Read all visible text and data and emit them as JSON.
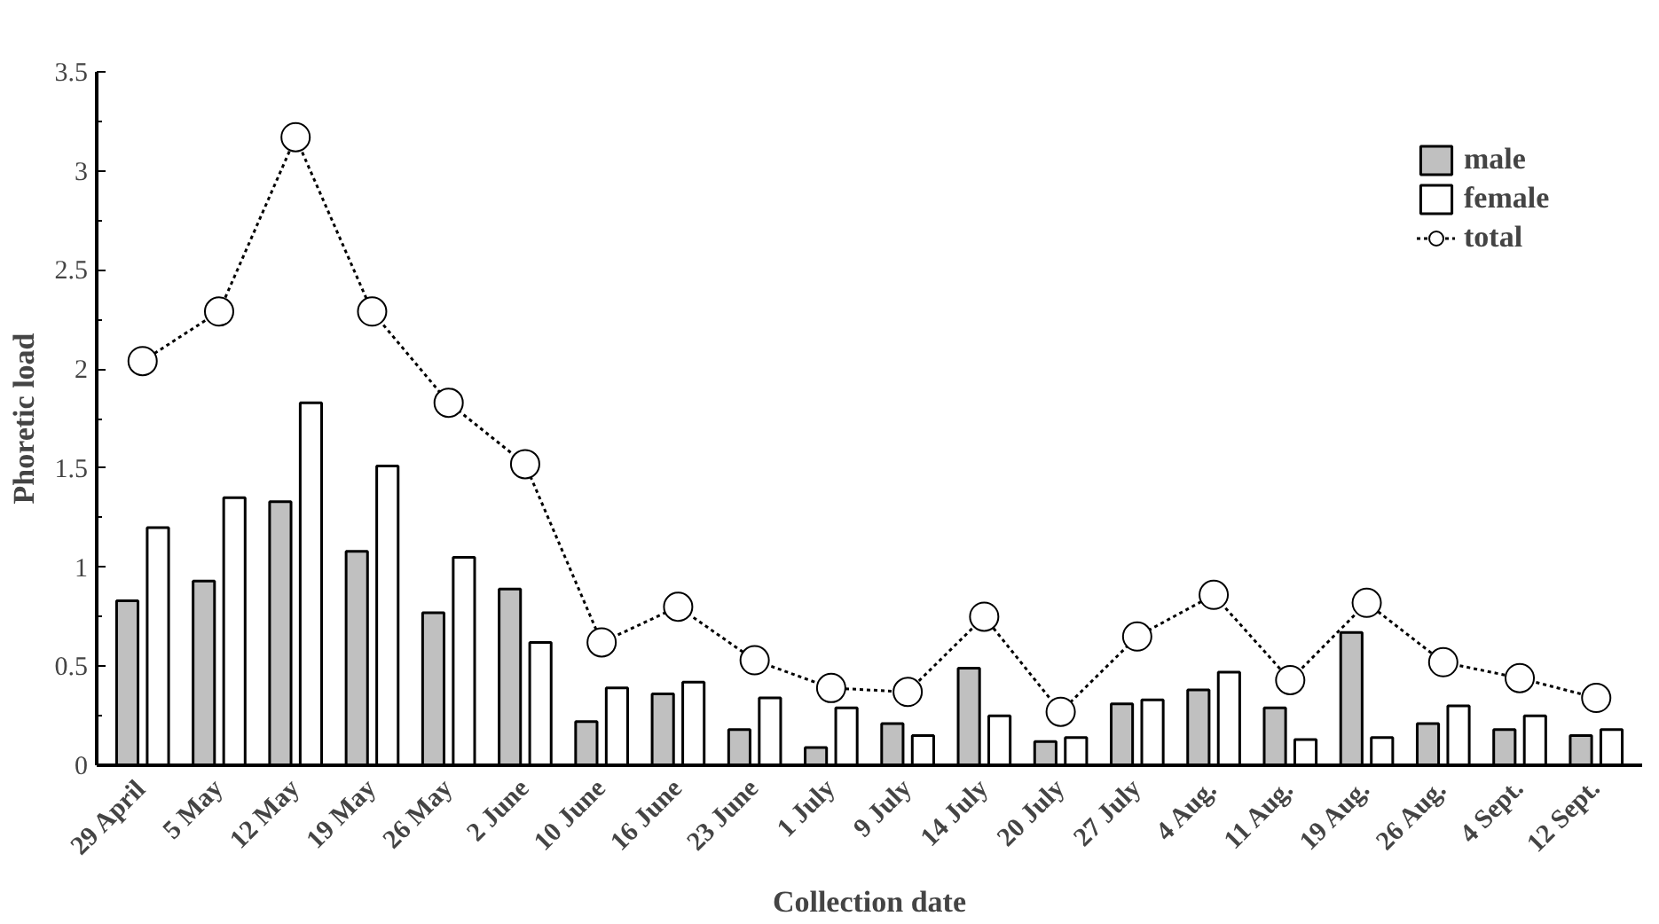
{
  "chart_data": {
    "type": "bar",
    "xlabel": "Collection date",
    "ylabel": "Phoretic load",
    "categories": [
      "29 April",
      "5 May",
      "12 May",
      "19 May",
      "26 May",
      "2 June",
      "10 June",
      "16 June",
      "23 June",
      "1 July",
      "9 July",
      "14 July",
      "20 July",
      "27 July",
      "4 Aug.",
      "11 Aug.",
      "19 Aug.",
      "26 Aug.",
      "4 Sept.",
      "12 Sept."
    ],
    "series": [
      {
        "name": "male",
        "color": "#c0c0c0",
        "values": [
          0.83,
          0.93,
          1.33,
          1.08,
          0.77,
          0.89,
          0.22,
          0.36,
          0.18,
          0.09,
          0.21,
          0.49,
          0.12,
          0.31,
          0.38,
          0.29,
          0.67,
          0.21,
          0.18,
          0.15
        ]
      },
      {
        "name": "female",
        "color": "#ffffff",
        "values": [
          1.2,
          1.35,
          1.83,
          1.51,
          1.05,
          0.62,
          0.39,
          0.42,
          0.34,
          0.29,
          0.15,
          0.25,
          0.14,
          0.33,
          0.47,
          0.13,
          0.14,
          0.3,
          0.25,
          0.18
        ]
      },
      {
        "name": "total",
        "type": "line",
        "color": "#ffffff",
        "marker": "circle",
        "line_style": "dotted",
        "values": [
          2.04,
          2.29,
          3.17,
          2.29,
          1.83,
          1.52,
          0.62,
          0.8,
          0.53,
          0.39,
          0.37,
          0.75,
          0.27,
          0.65,
          0.86,
          0.43,
          0.82,
          0.52,
          0.44,
          0.34
        ]
      }
    ],
    "ylim": [
      0,
      3.5
    ],
    "yticks": [
      0,
      0.5,
      1,
      1.5,
      2,
      2.5,
      3,
      3.5
    ],
    "grid": false,
    "legend": "top right"
  }
}
